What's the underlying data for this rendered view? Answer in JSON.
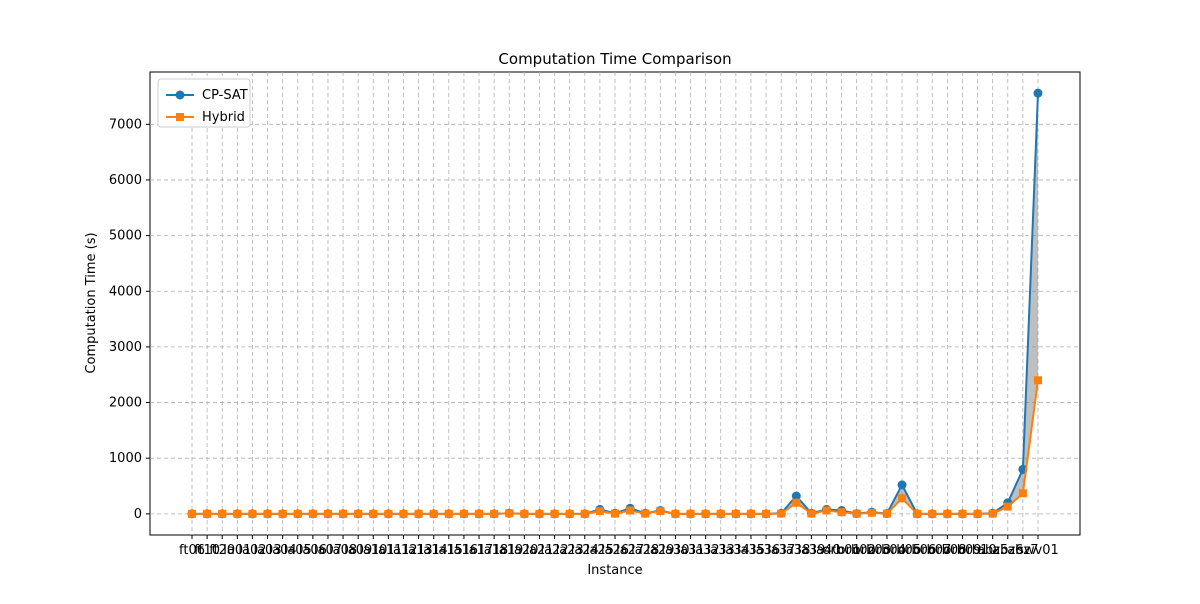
{
  "chart_data": {
    "type": "line",
    "title": "Computation Time Comparison",
    "x_label": "Instance",
    "y_label": "Computation Time (s)",
    "categories": [
      "ft06",
      "ft10",
      "ft20",
      "la01",
      "la02",
      "la03",
      "la04",
      "la05",
      "la06",
      "la07",
      "la08",
      "la09",
      "la10",
      "la11",
      "la12",
      "la13",
      "la14",
      "la15",
      "la16",
      "la17",
      "la18",
      "la19",
      "la20",
      "la21",
      "la22",
      "la23",
      "la24",
      "la25",
      "la26",
      "la27",
      "la28",
      "la29",
      "la30",
      "la31",
      "la32",
      "la33",
      "la34",
      "la35",
      "la36",
      "la37",
      "la38",
      "la39",
      "la40",
      "orb01",
      "orb02",
      "orb03",
      "orb04",
      "orb05",
      "orb06",
      "orb07",
      "orb08",
      "orb09",
      "orb10",
      "abz5",
      "abz6",
      "abz7",
      "swv01"
    ],
    "series": [
      {
        "name": "CP-SAT",
        "color": "#1f77b4",
        "marker": "circle",
        "values": [
          0,
          0,
          0,
          0,
          0,
          0,
          0,
          0,
          0,
          0,
          0,
          0,
          0,
          0,
          0,
          0,
          0,
          0,
          0,
          0,
          0,
          10,
          0,
          0,
          0,
          0,
          0,
          80,
          10,
          100,
          10,
          60,
          0,
          0,
          0,
          0,
          0,
          0,
          0,
          10,
          320,
          10,
          80,
          60,
          5,
          30,
          5,
          520,
          0,
          0,
          0,
          0,
          0,
          10,
          200,
          800,
          7560
        ]
      },
      {
        "name": "Hybrid",
        "color": "#ff7f0e",
        "marker": "square",
        "values": [
          0,
          0,
          0,
          0,
          0,
          0,
          0,
          0,
          0,
          0,
          0,
          0,
          0,
          0,
          0,
          0,
          0,
          0,
          0,
          0,
          0,
          10,
          0,
          0,
          0,
          0,
          0,
          50,
          5,
          60,
          5,
          50,
          0,
          0,
          0,
          0,
          0,
          0,
          0,
          5,
          200,
          5,
          60,
          30,
          3,
          20,
          3,
          280,
          0,
          0,
          0,
          0,
          0,
          5,
          130,
          370,
          2400
        ]
      }
    ],
    "fill_between": true,
    "fill_color": "#808080",
    "ylim": [
      -380,
      7940
    ],
    "yticks": [
      0,
      1000,
      2000,
      3000,
      4000,
      5000,
      6000,
      7000
    ],
    "grid": true,
    "legend": "upper left"
  }
}
